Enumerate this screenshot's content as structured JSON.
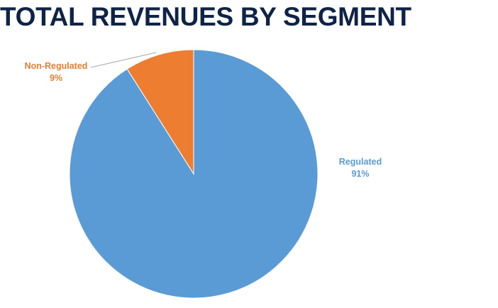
{
  "colors": {
    "title": "#0f2346",
    "regulated": "#5b9bd5",
    "non_regulated": "#ed7d31",
    "leader_line": "#a6a6a6",
    "regulated_label": "#5b9bd5",
    "non_regulated_label": "#ed7d31"
  },
  "chart_data": {
    "type": "pie",
    "title": "TOTAL REVENUES BY SEGMENT",
    "slices": [
      {
        "name": "Regulated",
        "value": 91,
        "label": "91%"
      },
      {
        "name": "Non-Regulated",
        "value": 9,
        "label": "9%"
      }
    ],
    "start_angle_deg": 0,
    "direction": "counterclockwise-from-top-for-second-slice",
    "legend": "none",
    "data_labels": "outside"
  }
}
